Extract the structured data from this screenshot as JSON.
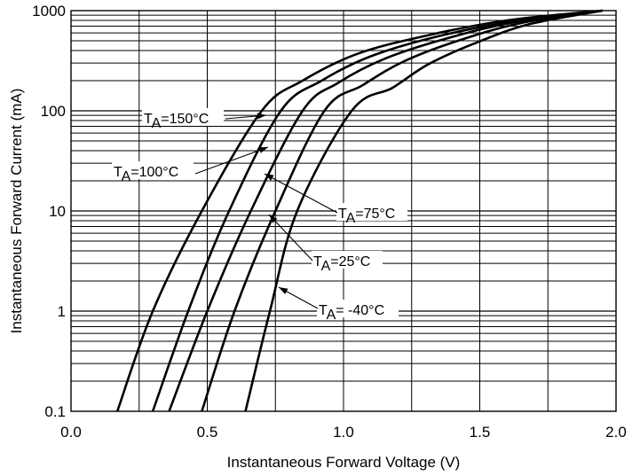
{
  "chart_data": {
    "type": "line",
    "xlabel": "Instantaneous Forward Voltage (V)",
    "ylabel": "Instantaneous Forward Current (mA)",
    "x_scale": "linear",
    "y_scale": "log",
    "xlim": [
      0.0,
      2.0
    ],
    "ylim": [
      0.1,
      1000
    ],
    "x_ticks": [
      "0.0",
      "0.5",
      "1.0",
      "1.5",
      "2.0"
    ],
    "y_ticks": [
      "0.1",
      "1",
      "10",
      "100",
      "1000"
    ],
    "grid": true,
    "series": [
      {
        "name": "TA=150°C",
        "x": [
          0.17,
          0.3,
          0.48,
          0.7,
          0.85,
          1.05,
          1.3,
          1.6,
          1.95
        ],
        "y": [
          0.1,
          1,
          10,
          100,
          200,
          370,
          560,
          800,
          1000
        ]
      },
      {
        "name": "TA=100°C",
        "x": [
          0.3,
          0.43,
          0.58,
          0.77,
          0.92,
          1.1,
          1.33,
          1.62,
          1.95
        ],
        "y": [
          0.1,
          1,
          10,
          100,
          200,
          350,
          540,
          780,
          1000
        ]
      },
      {
        "name": "TA=75°C",
        "x": [
          0.36,
          0.5,
          0.66,
          0.85,
          0.98,
          1.15,
          1.37,
          1.63,
          1.95
        ],
        "y": [
          0.1,
          1,
          10,
          100,
          190,
          330,
          520,
          770,
          1000
        ]
      },
      {
        "name": "TA=25°C",
        "x": [
          0.48,
          0.6,
          0.75,
          0.93,
          1.07,
          1.22,
          1.42,
          1.65,
          1.95
        ],
        "y": [
          0.1,
          1,
          10,
          100,
          180,
          310,
          500,
          750,
          1000
        ]
      },
      {
        "name": "TA= -40°C",
        "x": [
          0.64,
          0.73,
          0.83,
          1.03,
          1.18,
          1.31,
          1.48,
          1.68,
          1.95
        ],
        "y": [
          0.1,
          1,
          10,
          100,
          170,
          290,
          470,
          730,
          1000
        ]
      }
    ],
    "annotations": [
      {
        "label_sub": "A",
        "label_rest": "=150°C",
        "text": "TA=150°C"
      },
      {
        "label_sub": "A",
        "label_rest": "=100°C",
        "text": "TA=100°C"
      },
      {
        "label_sub": "A",
        "label_rest": "=75°C",
        "text": "TA=75°C"
      },
      {
        "label_sub": "A",
        "label_rest": "=25°C",
        "text": "TA=25°C"
      },
      {
        "label_sub": "A",
        "label_rest": "= -40°C",
        "text": "TA= -40°C"
      }
    ]
  }
}
